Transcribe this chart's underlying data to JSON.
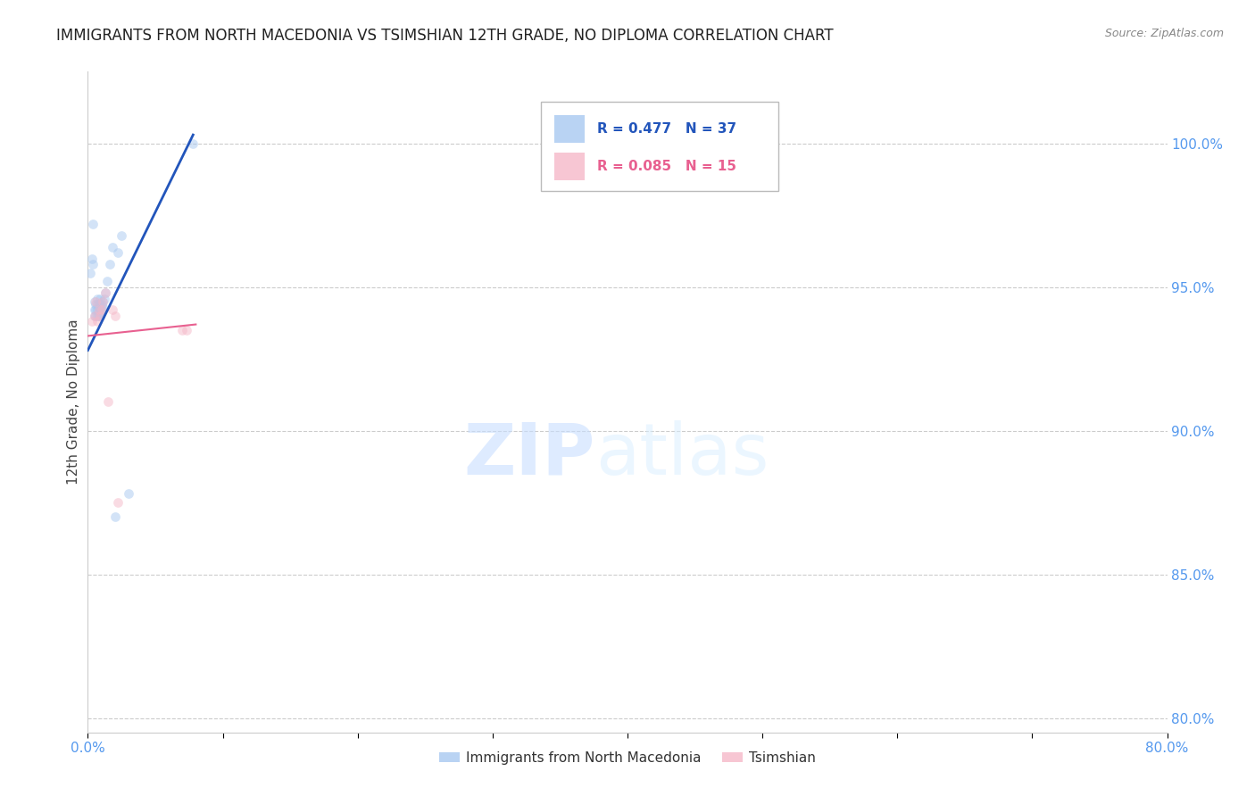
{
  "title": "IMMIGRANTS FROM NORTH MACEDONIA VS TSIMSHIAN 12TH GRADE, NO DIPLOMA CORRELATION CHART",
  "source": "Source: ZipAtlas.com",
  "ylabel": "12th Grade, No Diploma",
  "watermark_zip": "ZIP",
  "watermark_atlas": "atlas",
  "xlim": [
    0.0,
    0.8
  ],
  "ylim": [
    0.795,
    1.025
  ],
  "xtick_positions": [
    0.0,
    0.1,
    0.2,
    0.3,
    0.4,
    0.5,
    0.6,
    0.7,
    0.8
  ],
  "xtick_labels": [
    "0.0%",
    "",
    "",
    "",
    "",
    "",
    "",
    "",
    "80.0%"
  ],
  "ytick_positions": [
    0.8,
    0.85,
    0.9,
    0.95,
    1.0
  ],
  "ytick_labels": [
    "80.0%",
    "85.0%",
    "90.0%",
    "95.0%",
    "100.0%"
  ],
  "blue_R": 0.477,
  "blue_N": 37,
  "pink_R": 0.085,
  "pink_N": 15,
  "blue_scatter_color": "#A8C8F0",
  "pink_scatter_color": "#F5B8C8",
  "blue_line_color": "#2255BB",
  "pink_line_color": "#E86090",
  "legend_label_blue": "Immigrants from North Macedonia",
  "legend_label_pink": "Tsimshian",
  "blue_scatter_x": [
    0.002,
    0.003,
    0.004,
    0.004,
    0.005,
    0.005,
    0.005,
    0.006,
    0.006,
    0.006,
    0.007,
    0.007,
    0.007,
    0.007,
    0.008,
    0.008,
    0.008,
    0.008,
    0.008,
    0.009,
    0.009,
    0.009,
    0.009,
    0.01,
    0.01,
    0.011,
    0.011,
    0.012,
    0.013,
    0.014,
    0.016,
    0.018,
    0.02,
    0.022,
    0.025,
    0.03,
    0.078
  ],
  "blue_scatter_y": [
    0.955,
    0.96,
    0.958,
    0.972,
    0.94,
    0.942,
    0.945,
    0.94,
    0.942,
    0.944,
    0.94,
    0.942,
    0.944,
    0.946,
    0.94,
    0.941,
    0.942,
    0.943,
    0.944,
    0.94,
    0.942,
    0.944,
    0.946,
    0.942,
    0.944,
    0.943,
    0.945,
    0.946,
    0.948,
    0.952,
    0.958,
    0.964,
    0.87,
    0.962,
    0.968,
    0.878,
    1.0
  ],
  "pink_scatter_x": [
    0.003,
    0.005,
    0.006,
    0.007,
    0.008,
    0.009,
    0.01,
    0.011,
    0.013,
    0.015,
    0.018,
    0.02,
    0.022,
    0.07,
    0.073
  ],
  "pink_scatter_y": [
    0.938,
    0.94,
    0.945,
    0.938,
    0.942,
    0.94,
    0.942,
    0.945,
    0.948,
    0.91,
    0.942,
    0.94,
    0.875,
    0.935,
    0.935
  ],
  "blue_line_x": [
    0.0,
    0.078
  ],
  "blue_line_y": [
    0.928,
    1.003
  ],
  "pink_line_x": [
    0.0,
    0.08
  ],
  "pink_line_y": [
    0.933,
    0.937
  ],
  "background_color": "#ffffff",
  "grid_color": "#cccccc",
  "axis_color": "#5599ee",
  "title_color": "#222222",
  "title_fontsize": 12,
  "tick_fontsize": 11,
  "scatter_size": 60,
  "scatter_alpha": 0.5
}
